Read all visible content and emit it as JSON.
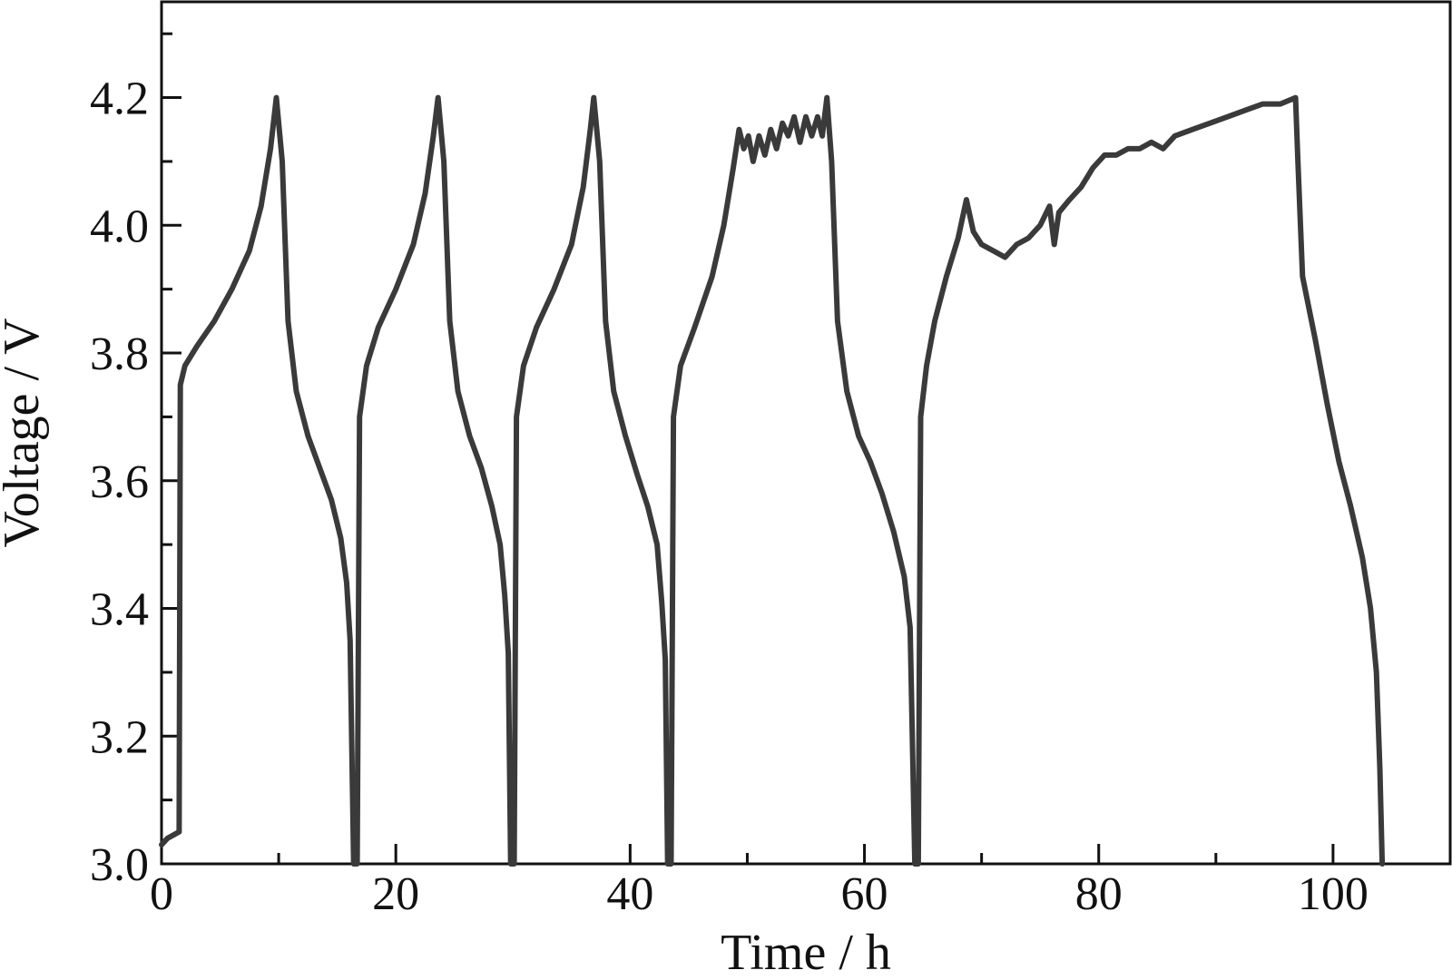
{
  "chart_data": {
    "type": "line",
    "title": "",
    "xlabel": "Time / h",
    "ylabel": "Voltage / V",
    "xlim": [
      0,
      110
    ],
    "ylim": [
      3.0,
      4.35
    ],
    "x_major_ticks": [
      0,
      20,
      40,
      60,
      80,
      100
    ],
    "x_minor_ticks": [
      10,
      30,
      50,
      70,
      90,
      110
    ],
    "y_major_ticks": [
      3.0,
      3.2,
      3.4,
      3.6,
      3.8,
      4.0,
      4.2
    ],
    "y_minor_ticks": [
      3.1,
      3.3,
      3.5,
      3.7,
      3.9,
      4.1,
      4.3
    ],
    "x_tick_labels": [
      "0",
      "20",
      "40",
      "60",
      "80",
      "100"
    ],
    "y_tick_labels": [
      "3.0",
      "3.2",
      "3.4",
      "3.6",
      "3.8",
      "4.0",
      "4.2"
    ],
    "grid": false,
    "line_color": "#3a3a3a",
    "series": [
      {
        "points": [
          [
            0,
            3.03
          ],
          [
            0.5,
            3.04
          ],
          [
            1.5,
            3.05
          ],
          [
            1.6,
            3.75
          ],
          [
            2,
            3.78
          ],
          [
            3,
            3.81
          ],
          [
            4.5,
            3.85
          ],
          [
            6,
            3.9
          ],
          [
            7.5,
            3.96
          ],
          [
            8.5,
            4.03
          ],
          [
            9.3,
            4.12
          ],
          [
            9.8,
            4.2
          ],
          [
            10.3,
            4.1
          ],
          [
            10.8,
            3.85
          ],
          [
            11.5,
            3.74
          ],
          [
            12.5,
            3.67
          ],
          [
            13.5,
            3.62
          ],
          [
            14.5,
            3.57
          ],
          [
            15.3,
            3.51
          ],
          [
            15.8,
            3.44
          ],
          [
            16.1,
            3.35
          ],
          [
            16.4,
            3.0
          ],
          [
            16.7,
            3.0
          ],
          [
            16.9,
            3.7
          ],
          [
            17.5,
            3.78
          ],
          [
            18.5,
            3.84
          ],
          [
            20,
            3.9
          ],
          [
            21.5,
            3.97
          ],
          [
            22.5,
            4.05
          ],
          [
            23.2,
            4.14
          ],
          [
            23.6,
            4.2
          ],
          [
            24.1,
            4.1
          ],
          [
            24.6,
            3.85
          ],
          [
            25.3,
            3.74
          ],
          [
            26.3,
            3.67
          ],
          [
            27.3,
            3.62
          ],
          [
            28.2,
            3.56
          ],
          [
            28.9,
            3.5
          ],
          [
            29.3,
            3.42
          ],
          [
            29.6,
            3.33
          ],
          [
            29.8,
            3.0
          ],
          [
            30.1,
            3.0
          ],
          [
            30.3,
            3.7
          ],
          [
            30.9,
            3.78
          ],
          [
            32,
            3.84
          ],
          [
            33.5,
            3.9
          ],
          [
            35,
            3.97
          ],
          [
            36,
            4.06
          ],
          [
            36.6,
            4.15
          ],
          [
            36.9,
            4.2
          ],
          [
            37.4,
            4.1
          ],
          [
            37.9,
            3.85
          ],
          [
            38.6,
            3.74
          ],
          [
            39.6,
            3.67
          ],
          [
            40.6,
            3.61
          ],
          [
            41.5,
            3.56
          ],
          [
            42.3,
            3.5
          ],
          [
            42.7,
            3.41
          ],
          [
            43,
            3.32
          ],
          [
            43.2,
            3.0
          ],
          [
            43.5,
            3.0
          ],
          [
            43.7,
            3.7
          ],
          [
            44.3,
            3.78
          ],
          [
            45.5,
            3.84
          ],
          [
            47,
            3.92
          ],
          [
            48,
            4.0
          ],
          [
            48.8,
            4.09
          ],
          [
            49.3,
            4.15
          ],
          [
            49.7,
            4.12
          ],
          [
            50.1,
            4.14
          ],
          [
            50.5,
            4.1
          ],
          [
            51,
            4.14
          ],
          [
            51.5,
            4.11
          ],
          [
            52,
            4.15
          ],
          [
            52.5,
            4.12
          ],
          [
            53,
            4.16
          ],
          [
            53.5,
            4.14
          ],
          [
            54,
            4.17
          ],
          [
            54.5,
            4.13
          ],
          [
            55,
            4.17
          ],
          [
            55.5,
            4.14
          ],
          [
            56,
            4.17
          ],
          [
            56.4,
            4.14
          ],
          [
            56.8,
            4.2
          ],
          [
            57.2,
            4.1
          ],
          [
            57.7,
            3.85
          ],
          [
            58.5,
            3.74
          ],
          [
            59.5,
            3.67
          ],
          [
            60.5,
            3.63
          ],
          [
            61.5,
            3.58
          ],
          [
            62.5,
            3.52
          ],
          [
            63.4,
            3.45
          ],
          [
            63.9,
            3.37
          ],
          [
            64.3,
            3.0
          ],
          [
            64.6,
            3.0
          ],
          [
            64.8,
            3.7
          ],
          [
            65.3,
            3.78
          ],
          [
            66,
            3.85
          ],
          [
            67,
            3.92
          ],
          [
            68,
            3.98
          ],
          [
            68.7,
            4.04
          ],
          [
            69.3,
            3.99
          ],
          [
            70,
            3.97
          ],
          [
            71,
            3.96
          ],
          [
            72,
            3.95
          ],
          [
            73,
            3.97
          ],
          [
            74,
            3.98
          ],
          [
            75,
            4.0
          ],
          [
            75.8,
            4.03
          ],
          [
            76.2,
            3.97
          ],
          [
            76.6,
            4.02
          ],
          [
            77.5,
            4.04
          ],
          [
            78.5,
            4.06
          ],
          [
            79.5,
            4.09
          ],
          [
            80.5,
            4.11
          ],
          [
            81.5,
            4.11
          ],
          [
            82.5,
            4.12
          ],
          [
            83.5,
            4.12
          ],
          [
            84.5,
            4.13
          ],
          [
            85.5,
            4.12
          ],
          [
            86.5,
            4.14
          ],
          [
            88,
            4.15
          ],
          [
            89.5,
            4.16
          ],
          [
            91,
            4.17
          ],
          [
            92.5,
            4.18
          ],
          [
            94,
            4.19
          ],
          [
            95.5,
            4.19
          ],
          [
            96.8,
            4.2
          ],
          [
            97,
            4.1
          ],
          [
            97.4,
            3.92
          ],
          [
            98.5,
            3.82
          ],
          [
            99.5,
            3.72
          ],
          [
            100.5,
            3.63
          ],
          [
            101.5,
            3.56
          ],
          [
            102.5,
            3.48
          ],
          [
            103.2,
            3.4
          ],
          [
            103.7,
            3.3
          ],
          [
            104,
            3.15
          ],
          [
            104.2,
            3.0
          ]
        ]
      }
    ]
  }
}
